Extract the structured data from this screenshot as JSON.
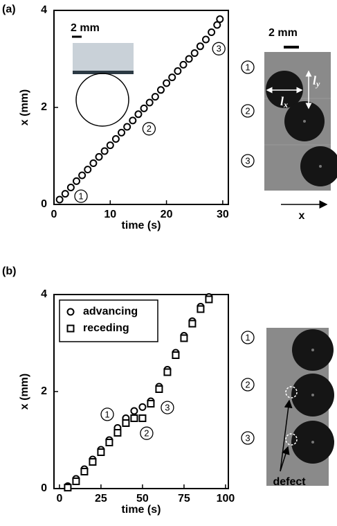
{
  "figure": {
    "panel_labels": [
      "(a)",
      "(b)"
    ],
    "inset_scale": "2 mm",
    "image_scale": "2 mm",
    "image_axis": "x",
    "length_symbol": "l",
    "length_subs": [
      "x",
      "y"
    ],
    "image_labels_a": [
      "1",
      "2",
      "3"
    ],
    "image_labels_b": [
      "1",
      "2",
      "3"
    ],
    "defect": "defect"
  },
  "chart_data": [
    {
      "type": "scatter",
      "xlabel": "time (s)",
      "ylabel": "x (mm)",
      "x": [
        1,
        2,
        3,
        4,
        5,
        6,
        7,
        8,
        9,
        10,
        11,
        12,
        13,
        14,
        15,
        16,
        17,
        18,
        19,
        20,
        21,
        22,
        23,
        24,
        25,
        26,
        27,
        28,
        29,
        29.5
      ],
      "series": [
        {
          "marker": "circle",
          "color": "#000000",
          "values": [
            0.1,
            0.22,
            0.35,
            0.48,
            0.6,
            0.72,
            0.85,
            0.98,
            1.1,
            1.22,
            1.35,
            1.48,
            1.6,
            1.73,
            1.86,
            1.98,
            2.1,
            2.22,
            2.36,
            2.5,
            2.62,
            2.75,
            2.88,
            3.0,
            3.12,
            3.26,
            3.4,
            3.55,
            3.7,
            3.82
          ]
        }
      ],
      "xlim": [
        0,
        31
      ],
      "ylim": [
        0,
        4
      ],
      "xticks": [
        0,
        10,
        20,
        30
      ],
      "yticks": [
        0,
        2,
        4
      ],
      "annotations": [
        {
          "text": "1",
          "x": 4.8,
          "y": 0.17
        },
        {
          "text": "2",
          "x": 16.9,
          "y": 1.56
        },
        {
          "text": "3",
          "x": 29.3,
          "y": 3.21
        }
      ]
    },
    {
      "type": "scatter",
      "xlabel": "time (s)",
      "ylabel": "x (mm)",
      "x": [
        5,
        10,
        15,
        20,
        25,
        30,
        35,
        40,
        45,
        50,
        55,
        60,
        65,
        70,
        75,
        80,
        85,
        90
      ],
      "series": [
        {
          "name": "advancing",
          "marker": "circle",
          "color": "#000000",
          "values": [
            0.05,
            0.2,
            0.4,
            0.6,
            0.8,
            1.0,
            1.25,
            1.45,
            1.6,
            1.68,
            1.8,
            2.1,
            2.45,
            2.8,
            3.15,
            3.45,
            3.75,
            3.95
          ]
        },
        {
          "name": "receding",
          "marker": "square",
          "color": "#000000",
          "values": [
            0.02,
            0.15,
            0.35,
            0.55,
            0.75,
            0.95,
            1.15,
            1.35,
            1.45,
            1.45,
            1.75,
            2.05,
            2.4,
            2.75,
            3.1,
            3.4,
            3.7,
            3.9
          ]
        }
      ],
      "xlim": [
        -3.3,
        101.7
      ],
      "ylim": [
        0,
        4
      ],
      "xticks": [
        0,
        25,
        50,
        75,
        100
      ],
      "yticks": [
        0,
        2,
        4
      ],
      "legend": "upper left",
      "annotations": [
        {
          "text": "1",
          "x": 28.8,
          "y": 1.53
        },
        {
          "text": "2",
          "x": 52.5,
          "y": 1.14
        },
        {
          "text": "3",
          "x": 65,
          "y": 1.67
        }
      ]
    }
  ]
}
